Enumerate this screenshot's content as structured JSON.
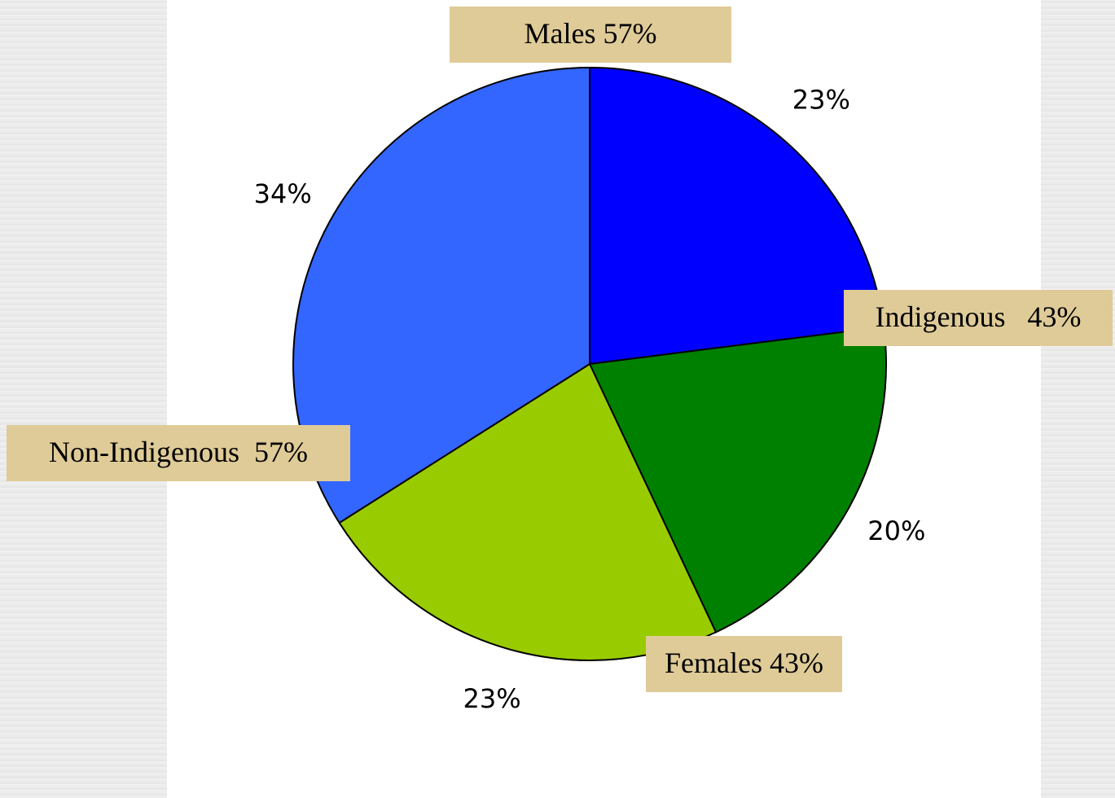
{
  "chart_data": {
    "type": "pie",
    "values": [
      23,
      20,
      23,
      34
    ],
    "value_labels": [
      "23%",
      "20%",
      "23%",
      "34%"
    ],
    "colors": [
      "#0000ff",
      "#008000",
      "#99cc00",
      "#3366ff"
    ],
    "annotations": [
      "Males 57%",
      "Indigenous   43%",
      "Non-Indigenous  57%",
      "Females 43%"
    ]
  }
}
